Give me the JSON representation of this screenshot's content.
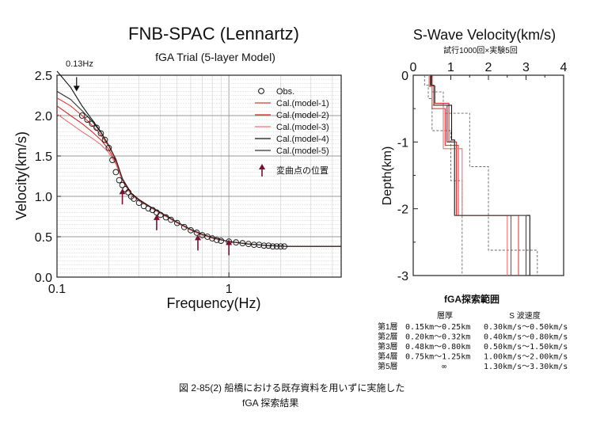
{
  "chart_data": [
    {
      "type": "line",
      "title": "FNB-SPAC (Lennartz)",
      "subtitle": "fGA Trial (5-layer Model)",
      "xlabel": "Frequency(Hz)",
      "ylabel": "Velocity(km/s)",
      "xscale": "log",
      "xlim": [
        0.1,
        4.5
      ],
      "ylim": [
        0.0,
        2.5
      ],
      "xticks": [
        "0.1",
        "1"
      ],
      "yticks": [
        "0.0",
        "0.5",
        "1.0",
        "1.5",
        "2.0",
        "2.5"
      ],
      "grid": true,
      "legend_position": "top-right",
      "annotation": "0.13Hz",
      "legend": [
        "Obs.",
        "Cal.(model-1)",
        "Cal.(model-2)",
        "Cal.(model-3)",
        "Cal.(model-4)",
        "Cal.(model-5)",
        "変曲点の位置"
      ],
      "observed": {
        "name": "Obs.",
        "x": [
          0.14,
          0.15,
          0.16,
          0.17,
          0.18,
          0.19,
          0.2,
          0.21,
          0.22,
          0.23,
          0.24,
          0.25,
          0.26,
          0.27,
          0.28,
          0.3,
          0.32,
          0.34,
          0.36,
          0.38,
          0.4,
          0.43,
          0.46,
          0.5,
          0.55,
          0.6,
          0.65,
          0.7,
          0.75,
          0.8,
          0.85,
          0.9,
          1.0,
          1.1,
          1.2,
          1.3,
          1.4,
          1.5,
          1.6,
          1.7,
          1.8,
          1.9,
          2.0,
          2.1
        ],
        "y": [
          2.0,
          1.95,
          1.9,
          1.85,
          1.78,
          1.7,
          1.6,
          1.45,
          1.3,
          1.2,
          1.14,
          1.09,
          1.05,
          1.0,
          0.97,
          0.92,
          0.88,
          0.85,
          0.83,
          0.8,
          0.77,
          0.74,
          0.71,
          0.67,
          0.62,
          0.58,
          0.55,
          0.52,
          0.5,
          0.48,
          0.46,
          0.45,
          0.44,
          0.43,
          0.42,
          0.41,
          0.4,
          0.4,
          0.39,
          0.39,
          0.38,
          0.38,
          0.38,
          0.38
        ]
      },
      "series": [
        {
          "name": "Cal.(model-1)",
          "color": "#e53b3b",
          "x": [
            0.1,
            0.12,
            0.14,
            0.16,
            0.18,
            0.2,
            0.22,
            0.24,
            0.27,
            0.3,
            0.35,
            0.4,
            0.5,
            0.6,
            0.7,
            0.8,
            1.0,
            1.3,
            1.7,
            2.2,
            3.0,
            4.5
          ],
          "y": [
            2.22,
            2.12,
            2.0,
            1.88,
            1.76,
            1.62,
            1.45,
            1.22,
            1.04,
            0.96,
            0.87,
            0.8,
            0.68,
            0.59,
            0.53,
            0.49,
            0.44,
            0.41,
            0.39,
            0.38,
            0.38,
            0.38
          ]
        },
        {
          "name": "Cal.(model-2)",
          "color": "#d42a2a",
          "x": [
            0.1,
            0.12,
            0.14,
            0.16,
            0.18,
            0.2,
            0.22,
            0.24,
            0.27,
            0.3,
            0.35,
            0.4,
            0.5,
            0.6,
            0.7,
            0.8,
            1.0,
            1.3,
            1.7,
            2.2,
            3.0,
            4.5
          ],
          "y": [
            2.12,
            2.0,
            1.9,
            1.8,
            1.7,
            1.58,
            1.42,
            1.2,
            1.03,
            0.95,
            0.86,
            0.79,
            0.67,
            0.58,
            0.52,
            0.48,
            0.44,
            0.41,
            0.39,
            0.38,
            0.38,
            0.38
          ]
        },
        {
          "name": "Cal.(model-3)",
          "color": "#f07070",
          "x": [
            0.1,
            0.12,
            0.14,
            0.16,
            0.18,
            0.2,
            0.22,
            0.24,
            0.27,
            0.3,
            0.35,
            0.4,
            0.5,
            0.6,
            0.7,
            0.8,
            1.0,
            1.3,
            1.7,
            2.2,
            3.0,
            4.5
          ],
          "y": [
            2.02,
            1.9,
            1.8,
            1.72,
            1.64,
            1.54,
            1.4,
            1.19,
            1.02,
            0.94,
            0.86,
            0.79,
            0.67,
            0.58,
            0.52,
            0.48,
            0.44,
            0.41,
            0.39,
            0.38,
            0.38,
            0.38
          ]
        },
        {
          "name": "Cal.(model-4)",
          "color": "#111111",
          "x": [
            0.1,
            0.12,
            0.14,
            0.16,
            0.18,
            0.2,
            0.22,
            0.24,
            0.27,
            0.3,
            0.35,
            0.4,
            0.5,
            0.6,
            0.7,
            0.8,
            1.0,
            1.3,
            1.7,
            2.2,
            3.0,
            4.5
          ],
          "y": [
            2.55,
            2.35,
            2.12,
            1.95,
            1.8,
            1.63,
            1.46,
            1.22,
            1.04,
            0.96,
            0.87,
            0.8,
            0.68,
            0.59,
            0.53,
            0.49,
            0.44,
            0.41,
            0.39,
            0.38,
            0.38,
            0.38
          ]
        },
        {
          "name": "Cal.(model-5)",
          "color": "#333333",
          "x": [
            0.1,
            0.12,
            0.14,
            0.16,
            0.18,
            0.2,
            0.22,
            0.24,
            0.27,
            0.3,
            0.35,
            0.4,
            0.5,
            0.6,
            0.7,
            0.8,
            1.0,
            1.3,
            1.7,
            2.2,
            3.0,
            4.5
          ],
          "y": [
            2.3,
            2.2,
            2.06,
            1.93,
            1.79,
            1.63,
            1.46,
            1.22,
            1.04,
            0.96,
            0.87,
            0.8,
            0.68,
            0.59,
            0.53,
            0.49,
            0.44,
            0.41,
            0.39,
            0.38,
            0.38,
            0.38
          ]
        }
      ],
      "arrows": {
        "name": "変曲点の位置",
        "x": [
          0.13,
          0.24,
          0.38,
          0.66,
          1.0
        ],
        "y": [
          2.3,
          0.9,
          0.58,
          0.33,
          0.27
        ],
        "color": "#7a1030"
      }
    },
    {
      "type": "line",
      "title": "S-Wave Velocity(km/s)",
      "subtitle": "試行1000回×実験5回",
      "ylabel": "Depth(km)",
      "xlim": [
        0,
        4
      ],
      "ylim": [
        -3,
        0
      ],
      "xticks": [
        "0",
        "1",
        "2",
        "3",
        "4"
      ],
      "yticks": [
        "0",
        "-1",
        "-2",
        "-3"
      ],
      "search_bounds": {
        "lower": {
          "x": [
            0.3,
            0.3,
            0.4,
            0.4,
            0.5,
            0.5,
            1.0,
            1.0,
            1.3,
            1.3
          ],
          "y": [
            0,
            -0.15,
            -0.15,
            -0.35,
            -0.35,
            -0.83,
            -0.83,
            -1.58,
            -1.58,
            -3
          ]
        },
        "upper": {
          "x": [
            0.5,
            0.5,
            0.8,
            0.8,
            1.5,
            1.5,
            2.0,
            2.0,
            3.3,
            3.3
          ],
          "y": [
            0,
            -0.25,
            -0.25,
            -0.57,
            -0.57,
            -1.37,
            -1.37,
            -2.62,
            -2.62,
            -3
          ]
        }
      },
      "series": [
        {
          "name": "model-1",
          "color": "#e53b3b",
          "x": [
            0.45,
            0.45,
            0.5,
            0.5,
            0.85,
            0.85,
            1.2,
            1.2,
            2.8,
            2.8
          ],
          "y": [
            0,
            -0.16,
            -0.16,
            -0.5,
            -0.5,
            -1.05,
            -1.05,
            -2.1,
            -2.1,
            -3
          ]
        },
        {
          "name": "model-2",
          "color": "#d42a2a",
          "x": [
            0.5,
            0.5,
            0.58,
            0.58,
            0.95,
            0.95,
            1.15,
            1.15,
            2.6,
            2.6
          ],
          "y": [
            0,
            -0.16,
            -0.16,
            -0.42,
            -0.42,
            -1.0,
            -1.0,
            -2.1,
            -2.1,
            -3
          ]
        },
        {
          "name": "model-3",
          "color": "#f07070",
          "x": [
            0.42,
            0.42,
            0.5,
            0.5,
            0.8,
            0.8,
            1.3,
            1.3,
            2.5,
            2.5
          ],
          "y": [
            0,
            -0.17,
            -0.17,
            -0.45,
            -0.45,
            -1.1,
            -1.1,
            -2.1,
            -2.1,
            -3
          ]
        },
        {
          "name": "model-4",
          "color": "#111111",
          "x": [
            0.48,
            0.48,
            0.55,
            0.55,
            1.02,
            1.02,
            1.1,
            1.1,
            3.1,
            3.1
          ],
          "y": [
            0,
            -0.15,
            -0.15,
            -0.45,
            -0.45,
            -0.97,
            -0.97,
            -2.1,
            -2.1,
            -3
          ]
        },
        {
          "name": "model-5",
          "color": "#444444",
          "x": [
            0.46,
            0.46,
            0.55,
            0.55,
            0.9,
            0.9,
            1.1,
            1.1,
            3.0,
            3.0
          ],
          "y": [
            0,
            -0.15,
            -0.15,
            -0.45,
            -0.45,
            -1.0,
            -1.0,
            -2.1,
            -2.1,
            -3
          ]
        }
      ]
    }
  ],
  "annotation_labels": {
    "arrow_freq": "0.13Hz"
  },
  "search_range_table": {
    "title": "fGA探索範囲",
    "header_thickness": "層厚",
    "header_velocity": "S 波速度",
    "rows": [
      {
        "layer": "第1層",
        "thickness": "0.15km〜0.25km",
        "velocity": "0.30km/s〜0.50km/s"
      },
      {
        "layer": "第2層",
        "thickness": "0.20km〜0.32km",
        "velocity": "0.40km/s〜0.80km/s"
      },
      {
        "layer": "第3層",
        "thickness": "0.48km〜0.80km",
        "velocity": "0.50km/s〜1.50km/s"
      },
      {
        "layer": "第4層",
        "thickness": "0.75km〜1.25km",
        "velocity": "1.00km/s〜2.00km/s"
      },
      {
        "layer": "第5層",
        "thickness": "∞",
        "velocity": "1.30km/s〜3.30km/s"
      }
    ]
  },
  "caption": {
    "line1": "図 2-85(2) 船橋における既存資料を用いずに実施した",
    "line2": "fGA 探索結果"
  }
}
